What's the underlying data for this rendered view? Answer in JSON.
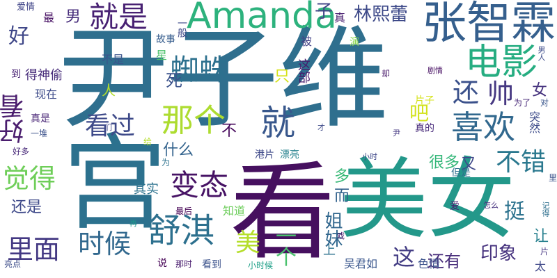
{
  "wordcloud": {
    "words": [
      {
        "text": "尹子维",
        "color": "#2f6f8e"
      },
      {
        "text": "看",
        "color": "#46105f"
      },
      {
        "text": "宫",
        "color": "#2c718e"
      },
      {
        "text": "美女",
        "color": "#23988a"
      },
      {
        "text": "Amanda",
        "color": "#2db27d"
      },
      {
        "text": "张智霖",
        "color": "#355f8d"
      },
      {
        "text": "电影",
        "color": "#26ad81"
      },
      {
        "text": "就是",
        "color": "#482173"
      },
      {
        "text": "林熙蕾",
        "color": "#3e4a89"
      },
      {
        "text": "蜘蛛",
        "color": "#2d708e"
      },
      {
        "text": "那个",
        "color": "#addc30"
      },
      {
        "text": "就",
        "color": "#38578c"
      },
      {
        "text": "喜欢",
        "color": "#31688e"
      },
      {
        "text": "还",
        "color": "#3b518b"
      },
      {
        "text": "帅",
        "color": "#453781"
      },
      {
        "text": "好看",
        "color": "#4a1d6e"
      },
      {
        "text": "看过",
        "color": "#3e4a89"
      },
      {
        "text": "变态",
        "color": "#471365"
      },
      {
        "text": "不错",
        "color": "#2a788e"
      },
      {
        "text": "觉得",
        "color": "#6ece58"
      },
      {
        "text": "舒淇",
        "color": "#2d708e"
      },
      {
        "text": "时候",
        "color": "#31688e"
      },
      {
        "text": "里面",
        "color": "#443983"
      },
      {
        "text": "美",
        "color": "#b5de2b"
      },
      {
        "text": "好",
        "color": "#3f4788"
      },
      {
        "text": "男",
        "color": "#472d7b"
      },
      {
        "text": "死",
        "color": "#3b528b"
      },
      {
        "text": "子",
        "color": "#414487"
      },
      {
        "text": "真",
        "color": "#481f70"
      },
      {
        "text": "女",
        "color": "#46337e"
      },
      {
        "text": "吧",
        "color": "#d2e21b"
      },
      {
        "text": "突然",
        "color": "#3e4c8a"
      },
      {
        "text": "什么",
        "color": "#33638d"
      },
      {
        "text": "不",
        "color": "#46085c"
      },
      {
        "text": "还是",
        "color": "#3e4989"
      },
      {
        "text": "其实",
        "color": "#2c728e"
      },
      {
        "text": "一个",
        "color": "#4ac16d"
      },
      {
        "text": "这",
        "color": "#433d84"
      },
      {
        "text": "印象",
        "color": "#46327e"
      },
      {
        "text": "还有",
        "color": "#472c7a"
      },
      {
        "text": "挺",
        "color": "#2c728e"
      },
      {
        "text": "让",
        "color": "#27808e"
      },
      {
        "text": "很多",
        "color": "#35b779"
      },
      {
        "text": "又",
        "color": "#3f4889"
      },
      {
        "text": "姐妹",
        "color": "#31678e"
      },
      {
        "text": "而",
        "color": "#33638d"
      },
      {
        "text": "多",
        "color": "#38b977"
      },
      {
        "text": "上",
        "color": "#2c728e"
      },
      {
        "text": "吴君如",
        "color": "#39568c"
      },
      {
        "text": "色情",
        "color": "#3b528b"
      },
      {
        "text": "太",
        "color": "#3f4889"
      },
      {
        "text": "得神偷",
        "color": "#472c7a"
      },
      {
        "text": "现在",
        "color": "#3e4c8a"
      },
      {
        "text": "不是",
        "color": "#3a548c"
      },
      {
        "text": "人",
        "color": "#b2dd2d"
      },
      {
        "text": "只",
        "color": "#d5e21a"
      },
      {
        "text": "这部",
        "color": "#481b6d"
      },
      {
        "text": "星",
        "color": "#4cc26c"
      },
      {
        "text": "演",
        "color": "#86d549"
      },
      {
        "text": "被",
        "color": "#424186"
      },
      {
        "text": "一般",
        "color": "#3e4a89"
      },
      {
        "text": "故事",
        "color": "#365d8d"
      },
      {
        "text": "最",
        "color": "#471063"
      },
      {
        "text": "爱情",
        "color": "#404588"
      },
      {
        "text": "到",
        "color": "#482173"
      },
      {
        "text": "真是",
        "color": "#482576"
      },
      {
        "text": "一堆",
        "color": "#3b518b"
      },
      {
        "text": "好多",
        "color": "#482979"
      },
      {
        "text": "港片",
        "color": "#3e4989"
      },
      {
        "text": "漂亮",
        "color": "#26828e"
      },
      {
        "text": "为了",
        "color": "#482878"
      },
      {
        "text": "对",
        "color": "#39568c"
      },
      {
        "text": "真的",
        "color": "#472a7a"
      },
      {
        "text": "片子",
        "color": "#d5e21a"
      },
      {
        "text": "但是",
        "color": "#2e6e8e"
      },
      {
        "text": "里",
        "color": "#3a538b"
      },
      {
        "text": "剧情",
        "color": "#471063"
      },
      {
        "text": "却",
        "color": "#48186a"
      },
      {
        "text": "男人",
        "color": "#3e4c8a"
      },
      {
        "text": "小时",
        "color": "#3f4889"
      },
      {
        "text": "尹",
        "color": "#453882"
      },
      {
        "text": "才",
        "color": "#3e4a89"
      },
      {
        "text": "们",
        "color": "#3f4788"
      },
      {
        "text": "给",
        "color": "#b5de2b"
      },
      {
        "text": "为",
        "color": "#2c728e"
      },
      {
        "text": "知道",
        "color": "#6ccd5a"
      },
      {
        "text": "最后",
        "color": "#440154"
      },
      {
        "text": "爱",
        "color": "#481b6d"
      },
      {
        "text": "怎么",
        "color": "#46327e"
      },
      {
        "text": "记得",
        "color": "#2e6f8e"
      },
      {
        "text": "再",
        "color": "#1f958b"
      },
      {
        "text": "戏",
        "color": "#481769"
      },
      {
        "text": "说",
        "color": "#440154"
      },
      {
        "text": "那时",
        "color": "#481c6e"
      },
      {
        "text": "看到",
        "color": "#3b528b"
      },
      {
        "text": "小时候",
        "color": "#1fa088"
      },
      {
        "text": "片",
        "color": "#453581"
      },
      {
        "text": "亮点",
        "color": "#3d4d8a"
      }
    ]
  }
}
